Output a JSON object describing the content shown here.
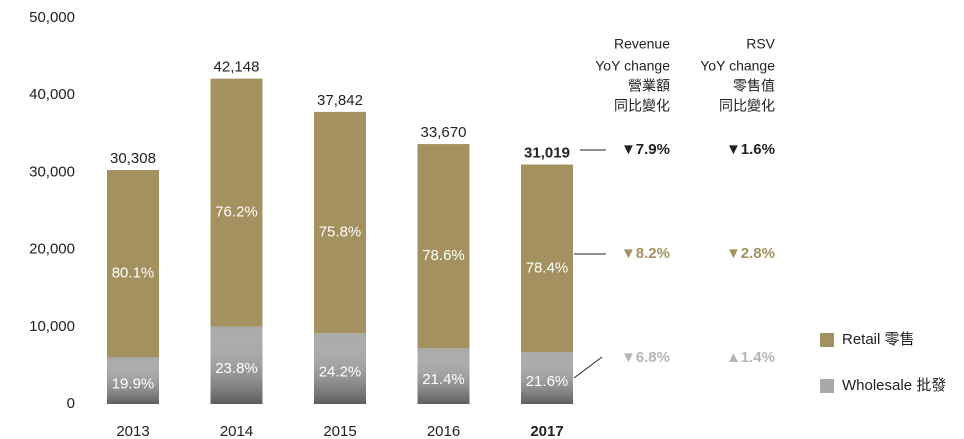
{
  "chart_data": {
    "type": "stacked_bar",
    "categories": [
      "2013",
      "2014",
      "2015",
      "2016",
      "2017"
    ],
    "series": [
      {
        "name": "Wholesale 批發",
        "color": "#a9a9ac",
        "values": [
          6031,
          10031,
          9158,
          7205,
          6700
        ],
        "share_labels": [
          "19.9%",
          "23.8%",
          "24.2%",
          "21.4%",
          "21.6%"
        ]
      },
      {
        "name": "Retail 零售",
        "color": "#a3915f",
        "values": [
          24277,
          32117,
          28684,
          26465,
          24319
        ],
        "share_labels": [
          "80.1%",
          "76.2%",
          "75.8%",
          "78.6%",
          "78.4%"
        ]
      }
    ],
    "totals": [
      30308,
      42148,
      37842,
      33670,
      31019
    ],
    "total_labels": [
      "30,308",
      "42,148",
      "37,842",
      "33,670",
      "31,019"
    ],
    "ylim": [
      0,
      50000
    ],
    "yticks": [
      0,
      {
        "value": 10000,
        "label": "10,000"
      },
      {
        "value": 20000,
        "label": "20,000"
      },
      {
        "value": 30000,
        "label": "30,000"
      },
      {
        "value": 40000,
        "label": "40,000"
      },
      {
        "value": 50000,
        "label": "50,000"
      }
    ],
    "grid": false,
    "legend": "lower right",
    "yoy_table": {
      "headers": [
        [
          "Revenue",
          "YoY change",
          "營業額",
          "同比變化"
        ],
        [
          "RSV",
          "YoY change",
          "零售值",
          "同比變化"
        ]
      ],
      "rows": [
        [
          "▼7.9%",
          "▼1.6%"
        ],
        [
          "▼8.2%",
          "▼2.8%"
        ],
        [
          "▼6.8%",
          "▲1.4%"
        ]
      ]
    }
  }
}
